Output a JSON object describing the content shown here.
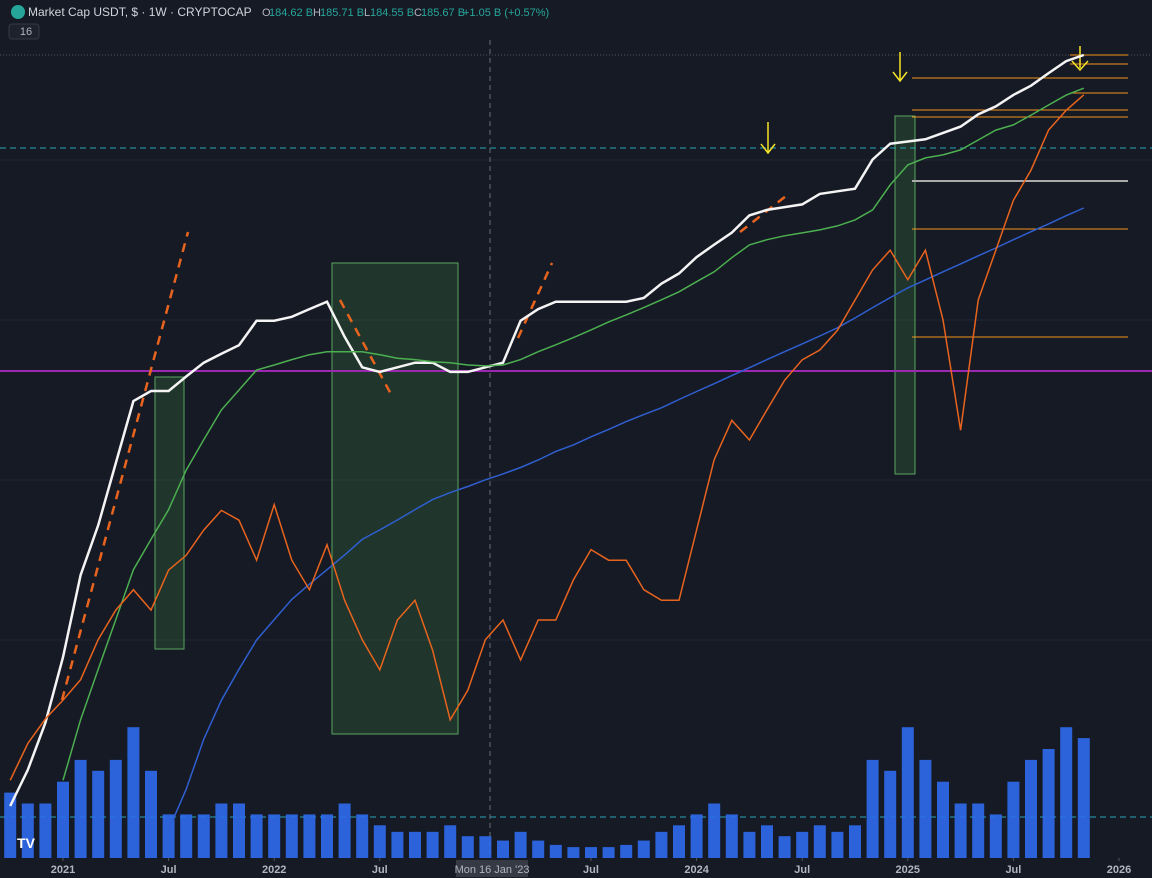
{
  "header": {
    "symbol": "Market Cap USDT, $ · 1W · CRYPTOCAP",
    "open_label": "O",
    "open": "184.62 B",
    "high_label": "H",
    "high": "185.71 B",
    "low_label": "L",
    "low": "184.55 B",
    "close_label": "C",
    "close": "185.67 B",
    "change": "+1.05 B (+0.57%)",
    "badge": "16"
  },
  "chart_data": {
    "type": "line",
    "ylog": true,
    "crosshair_label": "Mon 16 Jan '23",
    "x": [
      "2020-10",
      "2020-11",
      "2020-12",
      "2021-01",
      "2021-02",
      "2021-03",
      "2021-04",
      "2021-05",
      "2021-06",
      "2021-07",
      "2021-08",
      "2021-09",
      "2021-10",
      "2021-11",
      "2021-12",
      "2022-01",
      "2022-02",
      "2022-03",
      "2022-04",
      "2022-05",
      "2022-06",
      "2022-07",
      "2022-08",
      "2022-09",
      "2022-10",
      "2022-11",
      "2022-12",
      "2023-01",
      "2023-02",
      "2023-03",
      "2023-04",
      "2023-05",
      "2023-06",
      "2023-07",
      "2023-08",
      "2023-09",
      "2023-10",
      "2023-11",
      "2023-12",
      "2024-01",
      "2024-02",
      "2024-03",
      "2024-04",
      "2024-05",
      "2024-06",
      "2024-07",
      "2024-08",
      "2024-09",
      "2024-10",
      "2024-11",
      "2024-12",
      "2025-01",
      "2025-02",
      "2025-03",
      "2025-04",
      "2025-05",
      "2025-06",
      "2025-07",
      "2025-08",
      "2025-09",
      "2025-10",
      "2025-11"
    ],
    "xticks": [
      {
        "value": "2021-01",
        "label": "2021"
      },
      {
        "value": "2021-07",
        "label": "Jul"
      },
      {
        "value": "2022-01",
        "label": "2022"
      },
      {
        "value": "2022-07",
        "label": "Jul"
      },
      {
        "value": "2023-07",
        "label": "Jul"
      },
      {
        "value": "2024-01",
        "label": "2024"
      },
      {
        "value": "2024-07",
        "label": "Jul"
      },
      {
        "value": "2025-01",
        "label": "2025"
      },
      {
        "value": "2025-07",
        "label": "Jul"
      },
      {
        "value": "2026-01",
        "label": "2026"
      }
    ],
    "ylim": [
      13.5,
      195
    ],
    "y2lim": [
      0,
      100
    ],
    "y3lim": [
      0,
      100
    ],
    "series": [
      {
        "color": "#f4f4f4",
        "values": [
          16,
          18,
          21,
          26,
          34,
          40,
          49,
          60,
          62,
          62,
          65,
          68,
          70,
          72,
          78,
          78,
          79,
          81,
          83,
          74,
          67,
          66,
          67,
          68,
          68,
          66,
          66,
          67,
          68,
          78,
          81,
          83,
          83,
          83,
          83,
          83,
          84,
          88,
          91,
          96,
          100,
          104,
          110,
          112,
          113,
          114,
          118,
          119,
          120,
          132,
          139,
          140,
          141,
          144,
          147,
          153,
          157,
          163,
          168,
          175,
          182,
          185.67
        ]
      },
      {
        "color": "#4caf50",
        "values": [
          null,
          null,
          null,
          17.4,
          21.2,
          25.0,
          29.4,
          34.6,
          38.2,
          42.1,
          47.9,
          52.9,
          58.3,
          62.2,
          66.4,
          67.5,
          68.7,
          69.8,
          70.5,
          70.5,
          70.5,
          69.8,
          69.0,
          68.7,
          68.2,
          68.0,
          67.5,
          67.3,
          67.5,
          68.7,
          70.5,
          72.1,
          73.8,
          75.7,
          77.7,
          79.5,
          81.4,
          83.5,
          85.7,
          88.6,
          91.5,
          95.8,
          99.9,
          101.6,
          102.9,
          103.9,
          104.9,
          106.3,
          108.4,
          112.0,
          121.5,
          129.7,
          132.7,
          134.0,
          136.2,
          140.7,
          145.3,
          147.8,
          152.6,
          157.7,
          162.9,
          166.6
        ]
      },
      {
        "color": "#2f5fd0",
        "values": [
          null,
          null,
          null,
          null,
          null,
          null,
          null,
          null,
          null,
          14.8,
          16.9,
          19.9,
          22.6,
          25.0,
          27.5,
          29.4,
          31.4,
          33.0,
          34.6,
          36.3,
          38.2,
          39.4,
          40.7,
          42.1,
          43.5,
          44.5,
          45.4,
          46.4,
          47.3,
          48.3,
          49.5,
          50.9,
          52.0,
          53.4,
          54.7,
          56.1,
          57.4,
          58.7,
          60.3,
          61.9,
          63.5,
          65.2,
          66.9,
          68.7,
          70.5,
          72.3,
          74.2,
          76.2,
          78.7,
          81.4,
          84.1,
          86.8,
          89.1,
          91.5,
          93.9,
          96.4,
          98.9,
          101.6,
          104.3,
          107.0,
          109.9,
          112.7
        ]
      },
      {
        "color": "#e8641e",
        "axis": "y2",
        "values": [
          9.5,
          14,
          17,
          19.3,
          21.8,
          26.7,
          30.3,
          32.8,
          30.3,
          35.2,
          37,
          40.1,
          42.5,
          41.3,
          36.4,
          43.2,
          36.4,
          32.8,
          38.3,
          31.5,
          26.7,
          23,
          29.1,
          31.5,
          25.4,
          16.9,
          20.5,
          26.7,
          29.1,
          24.2,
          29.1,
          29.1,
          34,
          37.7,
          36.4,
          36.4,
          32.8,
          31.5,
          31.5,
          40.1,
          48.7,
          53.5,
          51.1,
          54.8,
          58.4,
          60.9,
          62.1,
          64.5,
          68.2,
          71.9,
          74.3,
          70.7,
          74.3,
          65.8,
          52.3,
          68.2,
          74.3,
          80.4,
          84.1,
          89,
          91.4,
          93.3
        ]
      },
      {
        "color": "#2f6bf0",
        "axis": "y3",
        "bars": true,
        "values": [
          30,
          25,
          25,
          35,
          45,
          40,
          45,
          60,
          40,
          20,
          20,
          20,
          25,
          25,
          20,
          20,
          20,
          20,
          20,
          25,
          20,
          15,
          12,
          12,
          12,
          15,
          10,
          10,
          8,
          12,
          8,
          6,
          5,
          5,
          5,
          6,
          8,
          12,
          15,
          20,
          25,
          20,
          12,
          15,
          10,
          12,
          15,
          12,
          15,
          45,
          40,
          60,
          45,
          35,
          25,
          25,
          20,
          35,
          45,
          50,
          60,
          55
        ]
      }
    ]
  }
}
